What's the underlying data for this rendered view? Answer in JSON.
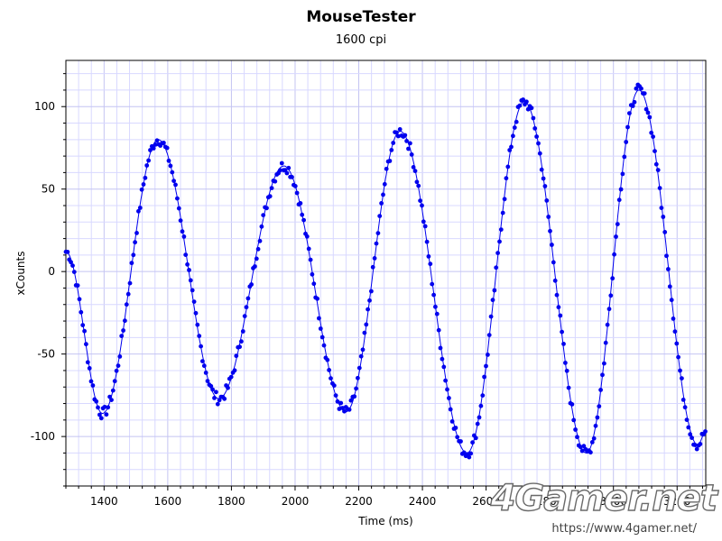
{
  "chart": {
    "title": "MouseTester",
    "subtitle": "1600 cpi",
    "xlabel": "Time (ms)",
    "ylabel": "xCounts"
  },
  "watermark": {
    "brand": "4Gamer.net",
    "url": "https://www.4gamer.net/"
  },
  "colors": {
    "series": "#0000ee",
    "grid": "#d8d8ff",
    "axis": "#000000"
  },
  "chart_data": {
    "type": "scatter",
    "title": "MouseTester",
    "subtitle": "1600 cpi",
    "xlabel": "Time (ms)",
    "ylabel": "xCounts",
    "xlim": [
      1280,
      3290
    ],
    "ylim": [
      -130,
      128
    ],
    "xticks": [
      1400,
      1600,
      1800,
      2000,
      2200,
      2400,
      2600,
      2800,
      3000,
      3200
    ],
    "yticks": [
      -100,
      -50,
      0,
      50,
      100
    ],
    "grid": true,
    "series_extrema": [
      {
        "x": 1280,
        "y": 12
      },
      {
        "x": 1395,
        "y": -86
      },
      {
        "x": 1570,
        "y": 80
      },
      {
        "x": 1760,
        "y": -77
      },
      {
        "x": 1965,
        "y": 64
      },
      {
        "x": 2160,
        "y": -85
      },
      {
        "x": 2330,
        "y": 85
      },
      {
        "x": 2540,
        "y": -110
      },
      {
        "x": 2720,
        "y": 103
      },
      {
        "x": 2915,
        "y": -110
      },
      {
        "x": 3080,
        "y": 110
      },
      {
        "x": 3265,
        "y": -105
      },
      {
        "x": 3290,
        "y": -97
      }
    ]
  }
}
